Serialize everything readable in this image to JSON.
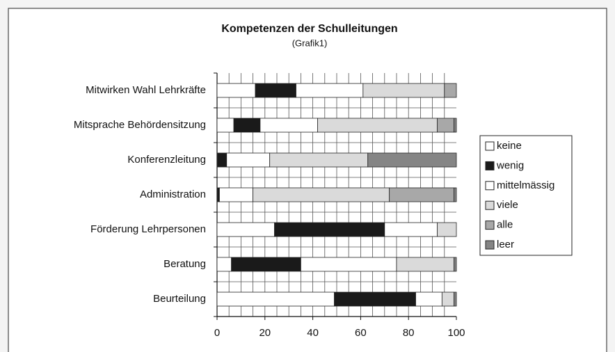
{
  "chart_data": {
    "type": "stacked-bar-horizontal",
    "title": "Kompetenzen der Schulleitungen",
    "subtitle": "(Grafik1)",
    "categories": [
      "Mitwirken Wahl Lehrkräfte",
      "Mitsprache Behördensitzung",
      "Konferenzleitung",
      "Administration",
      "Förderung Lehrpersonen",
      "Beratung",
      "Beurteilung"
    ],
    "series": [
      {
        "name": "keine",
        "color": "#ffffff",
        "values": [
          16,
          7,
          0,
          0,
          24,
          6,
          49
        ]
      },
      {
        "name": "wenig",
        "color": "#1a1a1a",
        "values": [
          17,
          11,
          4,
          1,
          46,
          29,
          34
        ]
      },
      {
        "name": "mittelmässig",
        "color": "#ffffff",
        "values": [
          28,
          24,
          18,
          14,
          22,
          40,
          11
        ]
      },
      {
        "name": "viele",
        "color": "#dadada",
        "values": [
          34,
          50,
          41,
          57,
          8,
          24,
          5
        ]
      },
      {
        "name": "alle",
        "color": "#a8a8a8",
        "values": [
          5,
          7,
          0,
          27,
          0,
          0,
          0
        ]
      },
      {
        "name": "leer",
        "color": "#858585",
        "values": [
          0,
          1,
          37,
          1,
          0,
          1,
          1
        ]
      }
    ],
    "xlim": [
      0,
      100
    ],
    "xticks": [
      0,
      20,
      40,
      60,
      80,
      100
    ],
    "xgrid": [
      5,
      10,
      15,
      20,
      25,
      30,
      35,
      40,
      45,
      50,
      55,
      60,
      65,
      70,
      75,
      80,
      85,
      90,
      95
    ],
    "grid": true,
    "legend": "right"
  }
}
